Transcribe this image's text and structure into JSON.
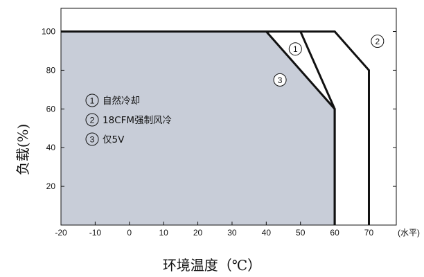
{
  "chart_data": {
    "type": "line",
    "xlabel": "环境温度（℃）",
    "ylabel": "负载(%)",
    "x_unit_label": "(水平)",
    "xlim": [
      -20,
      78
    ],
    "ylim": [
      0,
      112
    ],
    "x_ticks": [
      -20,
      -10,
      0,
      10,
      20,
      30,
      40,
      50,
      60,
      70
    ],
    "y_ticks": [
      20,
      40,
      60,
      80,
      100
    ],
    "grid": false,
    "shaded_region": {
      "description_series": "3",
      "fill": "#c8cdd8"
    },
    "series": [
      {
        "name": "1",
        "x": [
          -20,
          50,
          60,
          60
        ],
        "y": [
          100,
          100,
          60,
          0
        ]
      },
      {
        "name": "2",
        "x": [
          -20,
          60,
          70,
          70
        ],
        "y": [
          100,
          100,
          80,
          0
        ]
      },
      {
        "name": "3",
        "x": [
          -20,
          40,
          60,
          60
        ],
        "y": [
          100,
          100,
          60,
          0
        ]
      }
    ],
    "legend": [
      {
        "num": "1",
        "text": "自然冷却"
      },
      {
        "num": "2",
        "text": "18CFM强制风冷"
      },
      {
        "num": "3",
        "text": "仅5V"
      }
    ],
    "callouts": [
      {
        "num": "1",
        "x": 48.5,
        "y": 91
      },
      {
        "num": "2",
        "x": 72.5,
        "y": 95
      },
      {
        "num": "3",
        "x": 44,
        "y": 75
      }
    ]
  }
}
